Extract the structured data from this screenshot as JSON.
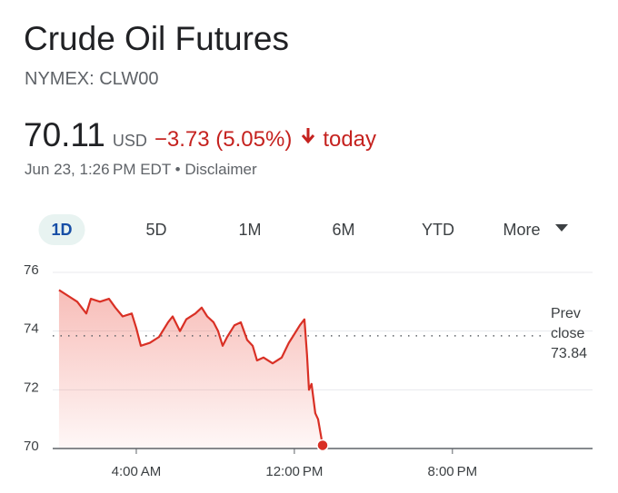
{
  "header": {
    "title": "Crude Oil Futures",
    "exchange": "NYMEX: CLW00",
    "price": "70.11",
    "currency": "USD",
    "change": "−3.73 (5.05%)",
    "period": "today",
    "timestamp": "Jun 23, 1:26 PM EDT",
    "separator": "•",
    "disclaimer": "Disclaimer"
  },
  "tabs": [
    "1D",
    "5D",
    "1M",
    "6M",
    "YTD",
    "More"
  ],
  "chart_data": {
    "type": "line",
    "color": "#d93025",
    "x": [
      0.09,
      0.55,
      1.01,
      1.47,
      1.7,
      2.16,
      2.62,
      2.94,
      3.31,
      3.77,
      4.0,
      4.23,
      4.69,
      5.15,
      5.61,
      5.84,
      6.21,
      6.53,
      6.99,
      7.31,
      7.59,
      7.91,
      8.14,
      8.37,
      8.6,
      8.97,
      9.29,
      9.61,
      9.89,
      10.11,
      10.44,
      10.9,
      11.36,
      11.72,
      11.91,
      12.28,
      12.51,
      12.64,
      12.74,
      12.87,
      13.06,
      13.2,
      13.43
    ],
    "values": [
      75.4,
      75.2,
      75.0,
      74.6,
      75.1,
      75.0,
      75.1,
      74.8,
      74.5,
      74.6,
      74.1,
      73.5,
      73.6,
      73.8,
      74.3,
      74.5,
      74.0,
      74.4,
      74.6,
      74.8,
      74.5,
      74.3,
      74.0,
      73.5,
      73.8,
      74.2,
      74.3,
      73.7,
      73.5,
      73.0,
      73.1,
      72.9,
      73.1,
      73.6,
      73.8,
      74.2,
      74.4,
      73.2,
      72.0,
      72.2,
      71.2,
      71.0,
      70.11
    ],
    "xlim": [
      0,
      27
    ],
    "xticks": [
      {
        "value": 4,
        "label": "4:00 AM"
      },
      {
        "value": 12,
        "label": "12:00 PM"
      },
      {
        "value": 20,
        "label": "8:00 PM"
      }
    ],
    "ylim": [
      70,
      76
    ],
    "yticks": [
      70,
      72,
      74,
      76
    ],
    "grid": true,
    "prev_close": 73.84,
    "prev_close_label": "Prev close"
  }
}
